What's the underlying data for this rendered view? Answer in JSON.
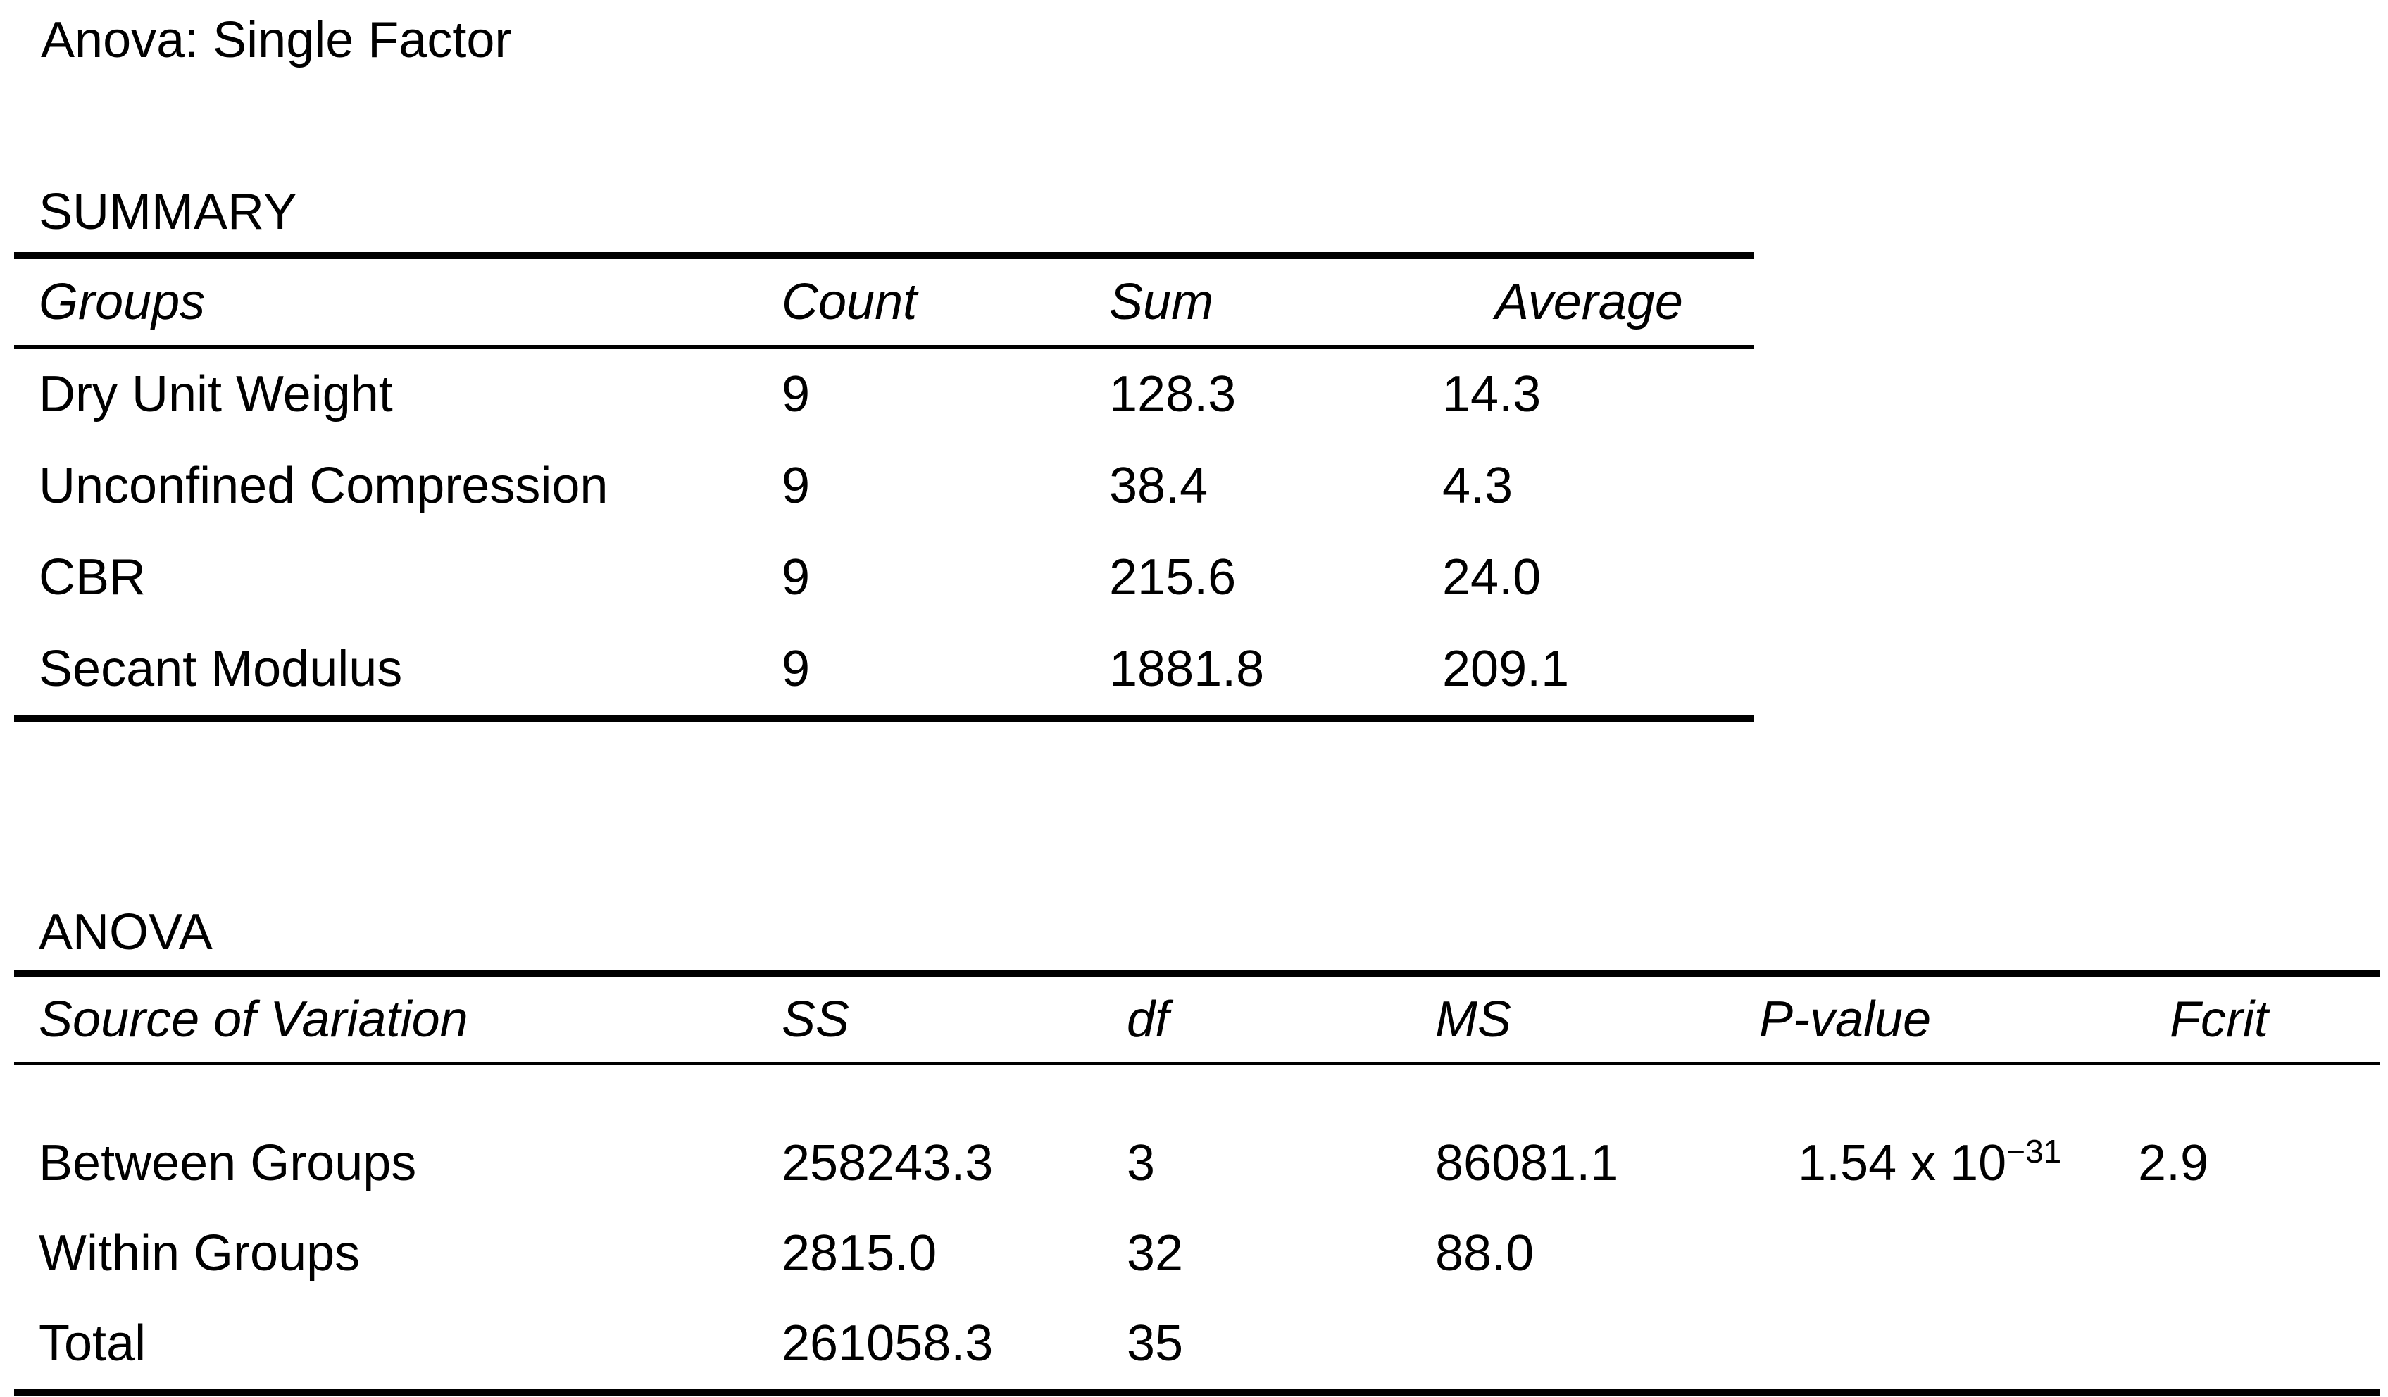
{
  "page": {
    "title": "Anova: Single Factor",
    "background_color": "#ffffff",
    "text_color": "#000000"
  },
  "summary_section": {
    "label": "SUMMARY",
    "table": {
      "headers": {
        "groups": "Groups",
        "count": "Count",
        "sum": "Sum",
        "average": "Average"
      },
      "rows": [
        {
          "group": "Dry Unit Weight",
          "count": "9",
          "sum": "128.3",
          "average": "14.3"
        },
        {
          "group": "Unconfined Compression",
          "count": "9",
          "sum": "38.4",
          "average": "4.3"
        },
        {
          "group": "CBR",
          "count": "9",
          "sum": "215.6",
          "average": "24.0"
        },
        {
          "group": "Secant Modulus",
          "count": "9",
          "sum": "1881.8",
          "average": "209.1"
        }
      ]
    }
  },
  "anova_section": {
    "label": "ANOVA",
    "table": {
      "headers": {
        "source": "Source of Variation",
        "ss": "SS",
        "df": "df",
        "ms": "MS",
        "p_value": "P-value",
        "f_crit": "Fcrit"
      },
      "rows": [
        {
          "source": "Between Groups",
          "ss": "258243.3",
          "df": "3",
          "ms": "86081.1",
          "p_value_base": "1.54 x 10",
          "p_value_exponent": "−31",
          "f_crit": "2.9"
        },
        {
          "source": "Within Groups",
          "ss": "2815.0",
          "df": "32",
          "ms": "88.0",
          "p_value_base": "",
          "p_value_exponent": "",
          "f_crit": ""
        },
        {
          "source": "Total",
          "ss": "261058.3",
          "df": "35",
          "ms": "",
          "p_value_base": "",
          "p_value_exponent": "",
          "f_crit": ""
        }
      ]
    }
  }
}
